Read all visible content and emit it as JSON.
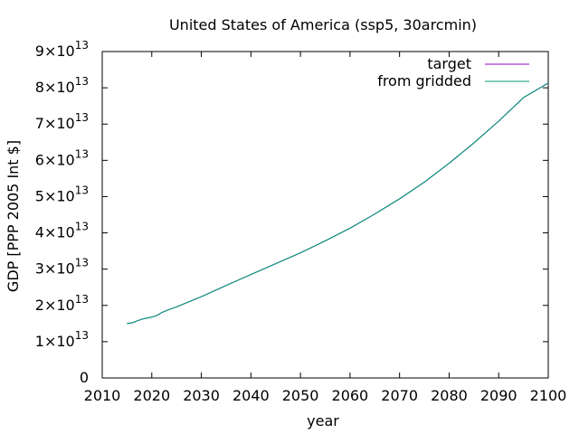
{
  "chart_data": {
    "type": "line",
    "title": "United States of America (ssp5, 30arcmin)",
    "xlabel": "year",
    "ylabel": "GDP [PPP 2005 Int $]",
    "xlim": [
      2010,
      2100
    ],
    "ylim": [
      0,
      90000000000000
    ],
    "grid": false,
    "legend_position": "top-right",
    "x_ticks": [
      2010,
      2020,
      2030,
      2040,
      2050,
      2060,
      2070,
      2080,
      2090,
      2100
    ],
    "y_ticks": [
      {
        "value": 0,
        "mantissa": "0",
        "exp": ""
      },
      {
        "value": 10000000000000,
        "mantissa": "1×10",
        "exp": "13"
      },
      {
        "value": 20000000000000,
        "mantissa": "2×10",
        "exp": "13"
      },
      {
        "value": 30000000000000,
        "mantissa": "3×10",
        "exp": "13"
      },
      {
        "value": 40000000000000,
        "mantissa": "4×10",
        "exp": "13"
      },
      {
        "value": 50000000000000,
        "mantissa": "5×10",
        "exp": "13"
      },
      {
        "value": 60000000000000,
        "mantissa": "6×10",
        "exp": "13"
      },
      {
        "value": 70000000000000,
        "mantissa": "7×10",
        "exp": "13"
      },
      {
        "value": 80000000000000,
        "mantissa": "8×10",
        "exp": "13"
      },
      {
        "value": 90000000000000,
        "mantissa": "9×10",
        "exp": "13"
      }
    ],
    "x": [
      2015,
      2016,
      2017,
      2018,
      2019,
      2020,
      2021,
      2022,
      2023,
      2025,
      2030,
      2035,
      2040,
      2045,
      2050,
      2055,
      2060,
      2065,
      2070,
      2075,
      2080,
      2085,
      2090,
      2095,
      2100
    ],
    "series": [
      {
        "name": "target",
        "color": "#9400d3",
        "values": [
          15000000000000.0,
          15200000000000.0,
          15700000000000.0,
          16200000000000.0,
          16500000000000.0,
          16800000000000.0,
          17200000000000.0,
          18000000000000.0,
          18600000000000.0,
          19600000000000.0,
          22400000000000.0,
          25500000000000.0,
          28500000000000.0,
          31500000000000.0,
          34500000000000.0,
          37800000000000.0,
          41300000000000.0,
          45200000000000.0,
          49400000000000.0,
          54000000000000.0,
          59200000000000.0,
          64800000000000.0,
          70800000000000.0,
          77300000000000.0,
          81300000000000.0
        ]
      },
      {
        "name": "from gridded",
        "color": "#009e73",
        "values": [
          15000000000000.0,
          15200000000000.0,
          15700000000000.0,
          16200000000000.0,
          16500000000000.0,
          16800000000000.0,
          17200000000000.0,
          18000000000000.0,
          18600000000000.0,
          19600000000000.0,
          22400000000000.0,
          25500000000000.0,
          28500000000000.0,
          31500000000000.0,
          34500000000000.0,
          37800000000000.0,
          41300000000000.0,
          45200000000000.0,
          49400000000000.0,
          54000000000000.0,
          59200000000000.0,
          64800000000000.0,
          70800000000000.0,
          77300000000000.0,
          81300000000000.0
        ]
      }
    ]
  }
}
